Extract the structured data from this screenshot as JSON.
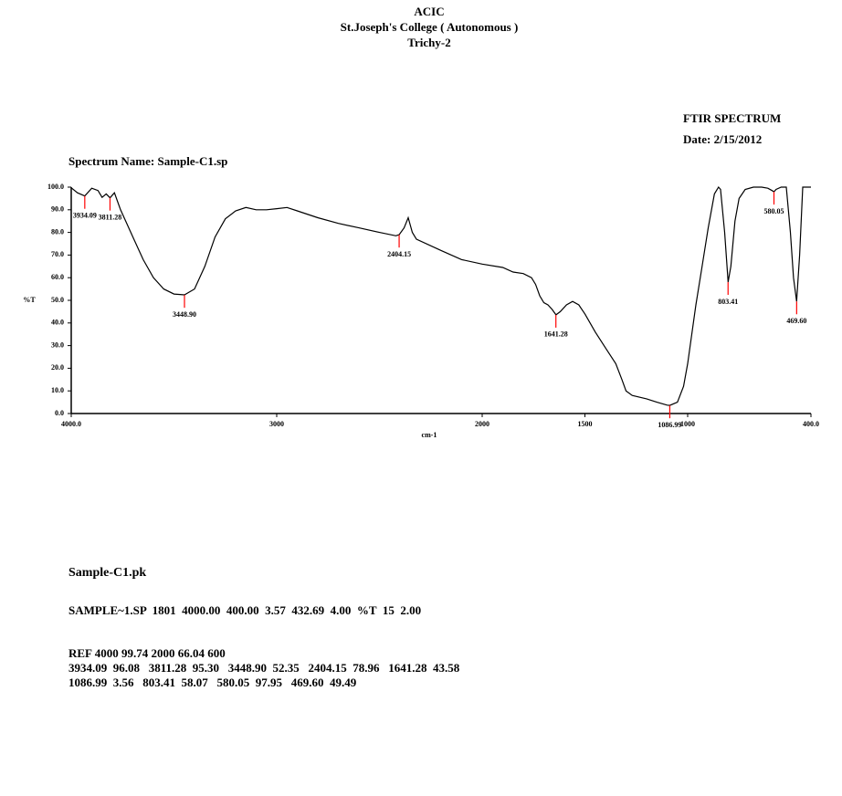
{
  "header": {
    "lines": [
      "ACIC",
      "St.Joseph's College ( Autonomous )",
      "Trichy-2"
    ],
    "report_type": "FTIR SPECTRUM",
    "date": "Date: 2/15/2012"
  },
  "chart_data": {
    "type": "line",
    "title": "Spectrum Name: Sample-C1.sp",
    "x_label": "cm-1",
    "y_label": "%T",
    "color": "#000000",
    "peak_color": "#ff0000",
    "xlim": [
      4000,
      400
    ],
    "ylim": [
      0,
      100
    ],
    "xticks": [
      {
        "value": 4000,
        "label": "4000.0"
      },
      3000,
      2000,
      1500,
      1000,
      {
        "value": 400,
        "label": "400.0"
      }
    ],
    "yticks": [
      {
        "value": 0,
        "label": "0.0"
      },
      {
        "value": 10,
        "label": "10.0"
      },
      {
        "value": 20,
        "label": "20.0"
      },
      {
        "value": 30,
        "label": "30.0"
      },
      {
        "value": 40,
        "label": "40.0"
      },
      {
        "value": 50,
        "label": "50.0"
      },
      {
        "value": 60,
        "label": "60.0"
      },
      {
        "value": 70,
        "label": "70.0"
      },
      {
        "value": 80,
        "label": "80.0"
      },
      {
        "value": 90,
        "label": "90.0"
      },
      {
        "value": 100,
        "label": "100.0"
      }
    ],
    "x": [
      4000,
      3970,
      3934,
      3900,
      3870,
      3850,
      3830,
      3811,
      3790,
      3760,
      3700,
      3650,
      3600,
      3550,
      3500,
      3449,
      3400,
      3350,
      3300,
      3250,
      3200,
      3150,
      3100,
      3050,
      3000,
      2950,
      2900,
      2800,
      2700,
      2600,
      2500,
      2420,
      2404,
      2380,
      2360,
      2340,
      2320,
      2200,
      2100,
      2000,
      1900,
      1850,
      1800,
      1760,
      1740,
      1720,
      1700,
      1680,
      1660,
      1641,
      1620,
      1590,
      1560,
      1530,
      1500,
      1450,
      1400,
      1350,
      1320,
      1300,
      1270,
      1200,
      1150,
      1100,
      1087,
      1050,
      1020,
      1000,
      980,
      960,
      930,
      900,
      870,
      850,
      840,
      820,
      803,
      790,
      770,
      750,
      720,
      680,
      640,
      610,
      590,
      580,
      570,
      545,
      520,
      500,
      485,
      470,
      455,
      440,
      400
    ],
    "values": [
      99.7,
      97.5,
      96.1,
      99.5,
      98.5,
      95.5,
      97,
      95.3,
      97.5,
      90,
      78,
      68,
      60,
      55,
      52.8,
      52.4,
      55,
      65,
      78,
      86,
      89.5,
      91,
      90,
      90,
      90.5,
      91,
      89.5,
      86.5,
      84,
      82,
      80,
      78.5,
      79,
      82,
      86.5,
      80,
      77,
      72,
      68,
      66,
      64.5,
      62.5,
      61.8,
      60,
      57,
      52,
      49,
      48,
      46,
      43.6,
      45,
      48,
      49.5,
      48,
      44,
      36,
      29,
      22,
      15,
      10,
      8,
      6.5,
      5,
      3.7,
      3.6,
      5,
      12,
      22,
      35,
      48,
      65,
      82,
      97,
      100,
      99,
      80,
      58.1,
      65,
      85,
      95,
      99,
      100,
      100,
      99.5,
      98.5,
      97.95,
      99,
      100,
      100,
      80,
      60,
      49.5,
      70,
      100,
      100
    ],
    "peaks": {
      "x": [
        3934.09,
        3811.28,
        3448.9,
        2404.15,
        1641.28,
        1086.99,
        803.41,
        580.05,
        469.6
      ],
      "values": [
        96.08,
        95.3,
        52.35,
        78.96,
        43.58,
        3.56,
        58.07,
        97.95,
        49.49
      ],
      "labels": [
        "3934.09",
        "3811.28",
        "3448.90",
        "2404.15",
        "1641.28",
        "1086.99",
        "803.41",
        "580.05",
        "469.60"
      ]
    }
  },
  "report": {
    "file": "Sample-C1.pk",
    "lines": [
      "SAMPLE~1.SP  1801  4000.00  400.00  3.57  432.69  4.00  %T  15  2.00",
      "REF 4000 99.74 2000 66.04 600",
      "3934.09  96.08   3811.28  95.30   3448.90  52.35   2404.15  78.96   1641.28  43.58",
      "1086.99  3.56   803.41  58.07   580.05  97.95   469.60  49.49"
    ]
  }
}
